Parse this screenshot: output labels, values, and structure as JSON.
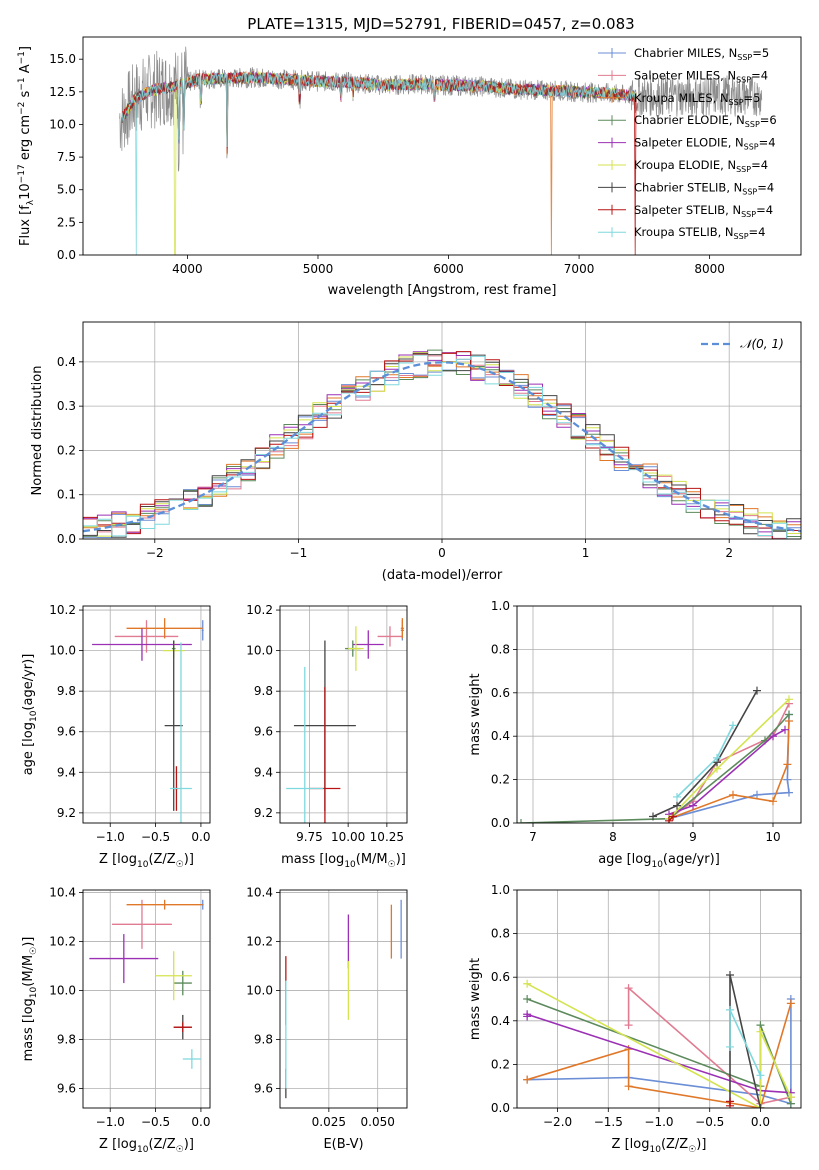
{
  "figure_title": "PLATE=1315, MJD=52791, FIBERID=0457, z=0.083",
  "colors": {
    "Chabrier MILES": "#6b8ed6",
    "Salpeter MILES": "#e07b91",
    "Kroupa MILES": "#e0782a",
    "Chabrier ELODIE": "#5c8a5c",
    "Salpeter ELODIE": "#9b30b5",
    "Kroupa ELODIE": "#d4e34f",
    "Chabrier STELIB": "#454545",
    "Salpeter STELIB": "#b81414",
    "Kroupa STELIB": "#7fd8de",
    "data": "#8c8c8c",
    "normal": "#5b8fd8",
    "grid": "#b0b0b0"
  },
  "chart_data": [
    {
      "id": "spectrum",
      "type": "line",
      "title": "PLATE=1315, MJD=52791, FIBERID=0457, z=0.083",
      "xlabel": "wavelength [Angstrom, rest frame]",
      "ylabel_main": "Flux [f",
      "ylabel_sub1": "λ",
      "ylabel_mid": "10",
      "ylabel_sup1": "−17",
      "ylabel_mid2": " erg cm",
      "ylabel_sup2": "−2",
      "ylabel_mid3": " s",
      "ylabel_sup3": "−1",
      "ylabel_mid4": " A",
      "ylabel_sup4": "−1",
      "ylabel_end": "]",
      "xlim": [
        3200,
        8700
      ],
      "ylim": [
        0,
        16.7
      ],
      "xticks": [
        "4000",
        "5000",
        "6000",
        "7000",
        "8000"
      ],
      "xtick_values": [
        4000,
        5000,
        6000,
        7000,
        8000
      ],
      "yticks": [
        "0.0",
        "2.5",
        "5.0",
        "7.5",
        "10.0",
        "12.5",
        "15.0"
      ],
      "ytick_values": [
        0,
        2.5,
        5,
        7.5,
        10,
        12.5,
        15
      ],
      "legend_position": "right",
      "legend": [
        {
          "name": "Chabrier MILES, N",
          "sub": "SSP",
          "tail": "=5",
          "model": "Chabrier MILES"
        },
        {
          "name": "Salpeter MILES, N",
          "sub": "SSP",
          "tail": "=4",
          "model": "Salpeter MILES"
        },
        {
          "name": "Kroupa MILES, N",
          "sub": "SSP",
          "tail": "=5",
          "model": "Kroupa MILES"
        },
        {
          "name": "Chabrier ELODIE, N",
          "sub": "SSP",
          "tail": "=6",
          "model": "Chabrier ELODIE"
        },
        {
          "name": "Salpeter ELODIE, N",
          "sub": "SSP",
          "tail": "=4",
          "model": "Salpeter ELODIE"
        },
        {
          "name": "Kroupa ELODIE, N",
          "sub": "SSP",
          "tail": "=4",
          "model": "Kroupa ELODIE"
        },
        {
          "name": "Chabrier STELIB, N",
          "sub": "SSP",
          "tail": "=4",
          "model": "Chabrier STELIB"
        },
        {
          "name": "Salpeter STELIB, N",
          "sub": "SSP",
          "tail": "=4",
          "model": "Salpeter STELIB"
        },
        {
          "name": "Kroupa STELIB, N",
          "sub": "SSP",
          "tail": "=4",
          "model": "Kroupa STELIB"
        }
      ],
      "continuum": [
        [
          3500,
          10.5
        ],
        [
          3600,
          12.0
        ],
        [
          3700,
          12.5
        ],
        [
          3800,
          12.8
        ],
        [
          3900,
          12.9
        ],
        [
          4000,
          13.2
        ],
        [
          4100,
          13.5
        ],
        [
          4300,
          13.5
        ],
        [
          4500,
          13.6
        ],
        [
          4700,
          13.5
        ],
        [
          5000,
          13.3
        ],
        [
          5300,
          13.2
        ],
        [
          5500,
          13.0
        ],
        [
          5800,
          13.1
        ],
        [
          6000,
          13.0
        ],
        [
          6300,
          12.9
        ],
        [
          6500,
          12.7
        ],
        [
          6800,
          12.6
        ],
        [
          7000,
          12.5
        ],
        [
          7200,
          12.4
        ],
        [
          7400,
          12.2
        ]
      ],
      "absorption_lines": [
        [
          3934,
          9.0
        ],
        [
          3969,
          10.0
        ],
        [
          4102,
          12.0
        ],
        [
          4304,
          8.0
        ],
        [
          4861,
          12.0
        ],
        [
          5175,
          12.2
        ],
        [
          5270,
          12.4
        ],
        [
          5890,
          12.2
        ]
      ],
      "dropouts": [
        {
          "x": 3905,
          "model": "Kroupa ELODIE"
        },
        {
          "x": 6790,
          "model": "Kroupa MILES"
        },
        {
          "x": 7430,
          "model": "Salpeter STELIB"
        },
        {
          "x": 3610,
          "model": "Kroupa STELIB"
        }
      ]
    },
    {
      "id": "residuals",
      "type": "histogram",
      "xlabel": "(data-model)/error",
      "ylabel": "Normed distribution",
      "xlim": [
        -2.5,
        2.5
      ],
      "ylim": [
        0,
        0.49
      ],
      "xticks": [
        "−2",
        "−1",
        "0",
        "1",
        "2"
      ],
      "xtick_values": [
        -2,
        -1,
        0,
        1,
        2
      ],
      "yticks": [
        "0.0",
        "0.1",
        "0.2",
        "0.3",
        "0.4"
      ],
      "ytick_values": [
        0,
        0.1,
        0.2,
        0.3,
        0.4
      ],
      "legend": [
        {
          "name": "𝒩(0, 1)",
          "style": "dashed"
        }
      ],
      "legend_position": "top-right",
      "bin_width": 0.1,
      "n_bins": 50
    },
    {
      "id": "age-vs-Z",
      "type": "errorbar",
      "xlabel": "Z [log",
      "xlabel_sub": "10",
      "xlabel_tail": "(Z/Z",
      "xlabel_sub2": "☉",
      "xlabel_end": ")]",
      "ylabel": "age  [log",
      "ylabel_sub": "10",
      "ylabel_tail": "(age/yr)]",
      "xlim": [
        -1.3,
        0.1
      ],
      "ylim": [
        9.15,
        10.22
      ],
      "xticks": [
        "−1.0",
        "−0.5",
        "0.0"
      ],
      "xtick_values": [
        -1.0,
        -0.5,
        0.0
      ],
      "yticks": [
        "9.2",
        "9.4",
        "9.6",
        "9.8",
        "10.0",
        "10.2"
      ],
      "ytick_values": [
        9.2,
        9.4,
        9.6,
        9.8,
        10.0,
        10.2
      ],
      "points": [
        {
          "model": "Chabrier MILES",
          "x": 0.02,
          "xerr": 0.01,
          "y": 10.1,
          "yerr": 0.05
        },
        {
          "model": "Salpeter MILES",
          "x": -0.6,
          "xerr": 0.35,
          "y": 10.07,
          "yerr": 0.08
        },
        {
          "model": "Kroupa MILES",
          "x": -0.4,
          "xerr": 0.42,
          "y": 10.11,
          "yerr": 0.05
        },
        {
          "model": "Chabrier ELODIE",
          "x": -0.3,
          "xerr": 0.02,
          "y": 10.01,
          "yerr": 0.04
        },
        {
          "model": "Salpeter ELODIE",
          "x": -0.65,
          "xerr": 0.55,
          "y": 10.03,
          "yerr": 0.08
        },
        {
          "model": "Kroupa ELODIE",
          "x": -0.3,
          "xerr": 0.12,
          "y": 10.0,
          "yerr": 0.04
        },
        {
          "model": "Chabrier STELIB",
          "x": -0.3,
          "xerr": 0.1,
          "y": 9.63,
          "yerr": 0.42
        },
        {
          "model": "Salpeter STELIB",
          "x": -0.27,
          "xerr": 0.02,
          "y": 9.32,
          "yerr": 0.11
        },
        {
          "model": "Kroupa STELIB",
          "x": -0.22,
          "xerr": 0.12,
          "y": 9.32,
          "yerr": 0.72
        }
      ]
    },
    {
      "id": "age-vs-mass",
      "type": "errorbar",
      "xlabel": "mass [log",
      "xlabel_sub": "10",
      "xlabel_tail": "(M/M",
      "xlabel_sub2": "☉",
      "xlabel_end": ")]",
      "xlim": [
        9.56,
        10.38
      ],
      "ylim": [
        9.15,
        10.22
      ],
      "xticks": [
        "9.75",
        "10.00",
        "10.25"
      ],
      "xtick_values": [
        9.75,
        10.0,
        10.25
      ],
      "yticks": [
        "9.2",
        "9.4",
        "9.6",
        "9.8",
        "10.0",
        "10.2"
      ],
      "ytick_values": [
        9.2,
        9.4,
        9.6,
        9.8,
        10.0,
        10.2
      ],
      "points": [
        {
          "model": "Chabrier MILES",
          "x": 10.35,
          "xerr": 0.01,
          "y": 10.1,
          "yerr": 0.05
        },
        {
          "model": "Salpeter MILES",
          "x": 10.27,
          "xerr": 0.08,
          "y": 10.07,
          "yerr": 0.05
        },
        {
          "model": "Kroupa MILES",
          "x": 10.35,
          "xerr": 0.01,
          "y": 10.11,
          "yerr": 0.05
        },
        {
          "model": "Chabrier ELODIE",
          "x": 10.03,
          "xerr": 0.05,
          "y": 10.01,
          "yerr": 0.04
        },
        {
          "model": "Salpeter ELODIE",
          "x": 10.13,
          "xerr": 0.1,
          "y": 10.03,
          "yerr": 0.07
        },
        {
          "model": "Kroupa ELODIE",
          "x": 10.05,
          "xerr": 0.05,
          "y": 10.01,
          "yerr": 0.11
        },
        {
          "model": "Chabrier STELIB",
          "x": 9.85,
          "xerr": 0.2,
          "y": 9.63,
          "yerr": 0.42
        },
        {
          "model": "Salpeter STELIB",
          "x": 9.85,
          "xerr": 0.1,
          "y": 9.32,
          "yerr": 0.5
        },
        {
          "model": "Kroupa STELIB",
          "x": 9.72,
          "xerr": 0.12,
          "y": 9.32,
          "yerr": 0.6
        }
      ]
    },
    {
      "id": "massweight-vs-age",
      "type": "line",
      "xlabel": "age  [log",
      "xlabel_sub": "10",
      "xlabel_tail": "(age/yr)]",
      "ylabel": "mass weight",
      "xlim": [
        6.8,
        10.35
      ],
      "ylim": [
        0,
        1.0
      ],
      "xticks": [
        "7",
        "8",
        "9",
        "10"
      ],
      "xtick_values": [
        7,
        8,
        9,
        10
      ],
      "yticks": [
        "0.0",
        "0.2",
        "0.4",
        "0.6",
        "0.8",
        "1.0"
      ],
      "ytick_values": [
        0,
        0.2,
        0.4,
        0.6,
        0.8,
        1.0
      ],
      "series": [
        {
          "model": "Chabrier MILES",
          "x": [
            8.7,
            9.8,
            10.2,
            10.18,
            10.2
          ],
          "y": [
            0.02,
            0.13,
            0.14,
            0.2,
            0.5
          ]
        },
        {
          "model": "Salpeter MILES",
          "x": [
            8.7,
            9.0,
            9.3,
            10.0,
            10.2
          ],
          "y": [
            0.02,
            0.1,
            0.28,
            0.4,
            0.55
          ]
        },
        {
          "model": "Kroupa MILES",
          "x": [
            8.7,
            9.5,
            10.0,
            10.18,
            10.2
          ],
          "y": [
            0.02,
            0.13,
            0.1,
            0.27,
            0.47
          ]
        },
        {
          "model": "Chabrier ELODIE",
          "x": [
            6.85,
            8.7,
            9.9,
            10.2
          ],
          "y": [
            0.0,
            0.02,
            0.38,
            0.5
          ]
        },
        {
          "model": "Salpeter ELODIE",
          "x": [
            8.7,
            9.0,
            10.0,
            10.15
          ],
          "y": [
            0.04,
            0.08,
            0.4,
            0.43
          ]
        },
        {
          "model": "Kroupa ELODIE",
          "x": [
            8.7,
            9.3,
            10.2
          ],
          "y": [
            0.02,
            0.25,
            0.57
          ]
        },
        {
          "model": "Chabrier STELIB",
          "x": [
            8.5,
            8.8,
            9.3,
            9.8
          ],
          "y": [
            0.03,
            0.08,
            0.28,
            0.61
          ]
        },
        {
          "model": "Salpeter STELIB",
          "x": [
            8.7,
            8.75
          ],
          "y": [
            0.01,
            0.03
          ]
        },
        {
          "model": "Kroupa STELIB",
          "x": [
            8.8,
            9.3,
            9.5
          ],
          "y": [
            0.12,
            0.3,
            0.45
          ]
        }
      ]
    },
    {
      "id": "mass-vs-Z",
      "type": "errorbar",
      "xlabel": "Z [log",
      "xlabel_sub": "10",
      "xlabel_tail": "(Z/Z",
      "xlabel_sub2": "☉",
      "xlabel_end": ")]",
      "ylabel": "mass [log",
      "ylabel_sub": "10",
      "ylabel_tail": "(M/M",
      "ylabel_sub2": "☉",
      "ylabel_end": ")]",
      "xlim": [
        -1.3,
        0.1
      ],
      "ylim": [
        9.52,
        10.41
      ],
      "xticks": [
        "−1.0",
        "−0.5",
        "0.0"
      ],
      "xtick_values": [
        -1.0,
        -0.5,
        0.0
      ],
      "yticks": [
        "9.6",
        "9.8",
        "10.0",
        "10.2",
        "10.4"
      ],
      "ytick_values": [
        9.6,
        9.8,
        10.0,
        10.2,
        10.4
      ],
      "points": [
        {
          "model": "Chabrier MILES",
          "x": 0.02,
          "xerr": 0.01,
          "y": 10.35,
          "yerr": 0.02
        },
        {
          "model": "Salpeter MILES",
          "x": -0.65,
          "xerr": 0.33,
          "y": 10.27,
          "yerr": 0.1
        },
        {
          "model": "Kroupa MILES",
          "x": -0.4,
          "xerr": 0.42,
          "y": 10.35,
          "yerr": 0.02
        },
        {
          "model": "Chabrier ELODIE",
          "x": -0.2,
          "xerr": 0.1,
          "y": 10.03,
          "yerr": 0.05
        },
        {
          "model": "Salpeter ELODIE",
          "x": -0.85,
          "xerr": 0.38,
          "y": 10.13,
          "yerr": 0.1
        },
        {
          "model": "Kroupa ELODIE",
          "x": -0.3,
          "xerr": 0.2,
          "y": 10.06,
          "yerr": 0.1
        },
        {
          "model": "Chabrier STELIB",
          "x": -0.2,
          "xerr": 0.1,
          "y": 9.85,
          "yerr": 0.05
        },
        {
          "model": "Salpeter STELIB",
          "x": -0.2,
          "xerr": 0.1,
          "y": 9.85,
          "yerr": 0.02
        },
        {
          "model": "Kroupa STELIB",
          "x": -0.1,
          "xerr": 0.1,
          "y": 9.72,
          "yerr": 0.04
        }
      ]
    },
    {
      "id": "mass-vs-EBV",
      "type": "errorbar",
      "xlabel": "E(B-V)",
      "xlim": [
        0.0,
        0.065
      ],
      "ylim": [
        9.52,
        10.41
      ],
      "xticks": [
        "0.025",
        "0.050"
      ],
      "xtick_values": [
        0.025,
        0.05
      ],
      "yticks": [
        "9.6",
        "9.8",
        "10.0",
        "10.2",
        "10.4"
      ],
      "ytick_values": [
        9.6,
        9.8,
        10.0,
        10.2,
        10.4
      ],
      "points": [
        {
          "model": "Chabrier MILES",
          "x": 0.062,
          "xerr": 0,
          "y": 10.25,
          "yerr": 0.12
        },
        {
          "model": "Kroupa MILES",
          "x": 0.057,
          "xerr": 0,
          "y": 10.24,
          "yerr": 0.11
        },
        {
          "model": "Salpeter ELODIE",
          "x": 0.035,
          "xerr": 0,
          "y": 10.2,
          "yerr": 0.11
        },
        {
          "model": "Kroupa ELODIE",
          "x": 0.035,
          "xerr": 0,
          "y": 10.0,
          "yerr": 0.12
        },
        {
          "model": "Salpeter STELIB",
          "x": 0.003,
          "xerr": 0,
          "y": 10.0,
          "yerr": 0.14
        },
        {
          "model": "Chabrier STELIB",
          "x": 0.003,
          "xerr": 0,
          "y": 9.62,
          "yerr": 0.06
        },
        {
          "model": "Kroupa STELIB",
          "x": 0.003,
          "xerr": 0,
          "y": 9.82,
          "yerr": 0.22
        }
      ]
    },
    {
      "id": "massweight-vs-Z",
      "type": "line",
      "xlabel": "Z [log",
      "xlabel_sub": "10",
      "xlabel_tail": "(Z/Z",
      "xlabel_sub2": "☉",
      "xlabel_end": ")]",
      "ylabel": "mass weight",
      "xlim": [
        -2.4,
        0.4
      ],
      "ylim": [
        0,
        1.0
      ],
      "xticks": [
        "−2.0",
        "−1.5",
        "−1.0",
        "−0.5",
        "0.0"
      ],
      "xtick_values": [
        -2.0,
        -1.5,
        -1.0,
        -0.5,
        0.0
      ],
      "yticks": [
        "0.0",
        "0.2",
        "0.4",
        "0.6",
        "0.8",
        "1.0"
      ],
      "ytick_values": [
        0,
        0.2,
        0.4,
        0.6,
        0.8,
        1.0
      ],
      "series": [
        {
          "model": "Chabrier MILES",
          "x": [
            -2.3,
            -1.3,
            0.0,
            0.3,
            0.3
          ],
          "y": [
            0.13,
            0.14,
            0.06,
            0.02,
            0.5
          ]
        },
        {
          "model": "Salpeter MILES",
          "x": [
            -1.3,
            -1.3,
            0.0,
            0.3
          ],
          "y": [
            0.38,
            0.55,
            0.02,
            0.05
          ]
        },
        {
          "model": "Kroupa MILES",
          "x": [
            -2.3,
            -1.3,
            -1.3,
            0.0,
            0.3
          ],
          "y": [
            0.13,
            0.27,
            0.1,
            0.0,
            0.48
          ]
        },
        {
          "model": "Chabrier ELODIE",
          "x": [
            -2.3,
            0.0,
            0.0,
            0.3
          ],
          "y": [
            0.5,
            0.1,
            0.38,
            0.02
          ]
        },
        {
          "model": "Salpeter ELODIE",
          "x": [
            -2.3,
            -2.3,
            0.0,
            0.3
          ],
          "y": [
            0.42,
            0.43,
            0.08,
            0.07
          ]
        },
        {
          "model": "Kroupa ELODIE",
          "x": [
            -2.3,
            0.0,
            0.0,
            0.3
          ],
          "y": [
            0.57,
            0.0,
            0.35,
            0.05
          ]
        },
        {
          "model": "Chabrier STELIB",
          "x": [
            -0.3,
            -0.3,
            0.0
          ],
          "y": [
            0.03,
            0.61,
            0.0
          ]
        },
        {
          "model": "Salpeter STELIB",
          "x": [
            -0.3,
            -0.3
          ],
          "y": [
            0.01,
            0.03
          ]
        },
        {
          "model": "Kroupa STELIB",
          "x": [
            -0.3,
            -0.3,
            0.0
          ],
          "y": [
            0.28,
            0.45,
            0.15
          ]
        }
      ]
    }
  ]
}
